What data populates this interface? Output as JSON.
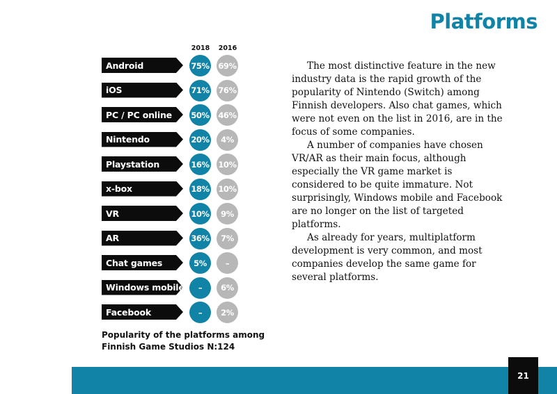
{
  "page": {
    "title": "Platforms",
    "page_number": "21"
  },
  "legend": {
    "year_a": "2018",
    "year_b": "2016"
  },
  "platforms": [
    {
      "label": "Android",
      "v2018": "75%",
      "v2016": "69%"
    },
    {
      "label": "iOS",
      "v2018": "71%",
      "v2016": "76%"
    },
    {
      "label": "PC / PC online",
      "v2018": "50%",
      "v2016": "46%"
    },
    {
      "label": "Nintendo",
      "v2018": "20%",
      "v2016": "4%"
    },
    {
      "label": "Playstation",
      "v2018": "16%",
      "v2016": "10%"
    },
    {
      "label": "x-box",
      "v2018": "18%",
      "v2016": "10%"
    },
    {
      "label": "VR",
      "v2018": "10%",
      "v2016": "9%"
    },
    {
      "label": "AR",
      "v2018": "36%",
      "v2016": "7%"
    },
    {
      "label": "Chat games",
      "v2018": "5%",
      "v2016": "–"
    },
    {
      "label": "Windows mobile",
      "v2018": "–",
      "v2016": "6%"
    },
    {
      "label": "Facebook",
      "v2018": "–",
      "v2016": "2%"
    }
  ],
  "caption": {
    "line1": "Popularity of the platforms among",
    "line2": "Finnish Game Studios N:124"
  },
  "body": {
    "p1": "The most distinctive feature in the new industry data is the rapid growth of the popularity of Nintendo (Switch) among Finnish developers. Also chat games, which were not even on the list in 2016, are in the focus of some companies.",
    "p2": "A number of companies have chosen VR/AR as their main focus, although especially the VR game market is considered to be quite immature. Not surprisingly, Windows mobile and Facebook are no longer on the list of targeted platforms.",
    "p3": "As already for years, multiplatform development is very common, and most companies develop the same game for several platforms."
  },
  "colors": {
    "accent": "#1183a6",
    "grey": "#b7b7b7",
    "dark": "#0c0c0c"
  }
}
